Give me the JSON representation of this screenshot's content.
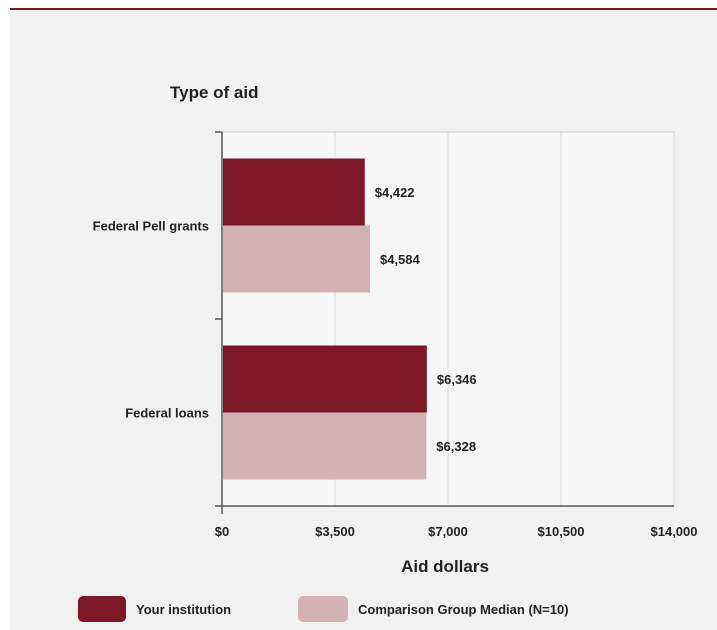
{
  "colors": {
    "your_institution": "#7d1829",
    "comparison_median": "#d4b1b7"
  },
  "chart_data": {
    "type": "bar",
    "orientation": "horizontal",
    "ylabel": "Type of aid",
    "xlabel": "Aid dollars",
    "categories": [
      "Federal Pell grants",
      "Federal loans"
    ],
    "series": [
      {
        "name": "Your institution",
        "values": [
          4422,
          6346
        ],
        "labels": [
          "$4,422",
          "$6,346"
        ]
      },
      {
        "name": "Comparison Group Median (N=10)",
        "values": [
          4584,
          6328
        ],
        "labels": [
          "$4,584",
          "$6,328"
        ]
      }
    ],
    "xlim": [
      0,
      14000
    ],
    "xticks": [
      0,
      3500,
      7000,
      10500,
      14000
    ],
    "xtick_labels": [
      "$0",
      "$3,500",
      "$7,000",
      "$10,500",
      "$14,000"
    ],
    "grid": true,
    "legend_position": "bottom"
  }
}
